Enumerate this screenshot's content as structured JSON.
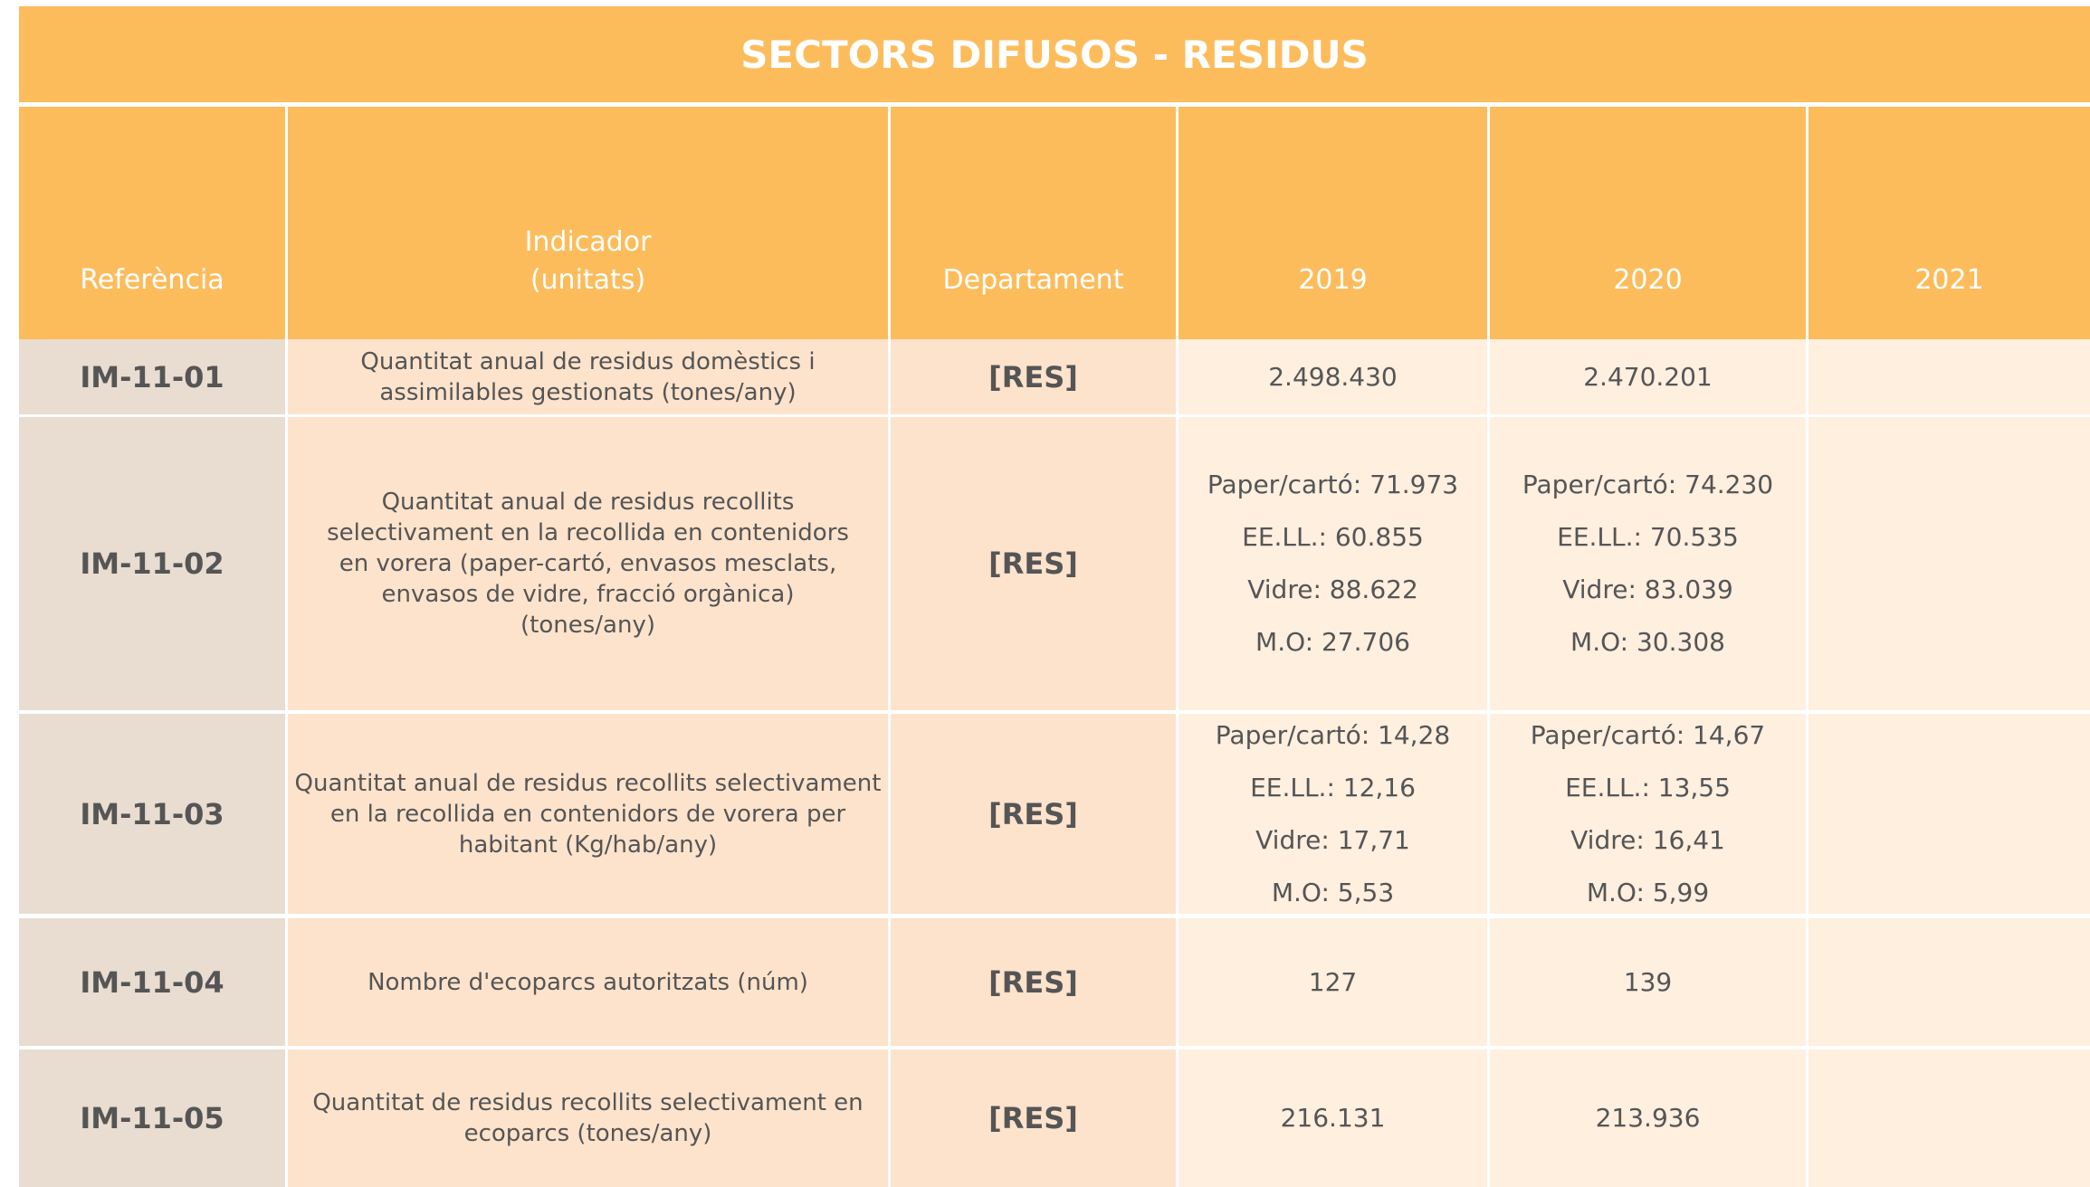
{
  "title": "SECTORS DIFUSOS - RESIDUS",
  "table": {
    "columns": [
      [
        "Referència"
      ],
      [
        "Indicador",
        "(unitats)"
      ],
      [
        "Departament"
      ],
      [
        "2019"
      ],
      [
        "2020"
      ],
      [
        "2021"
      ]
    ],
    "rows": [
      {
        "reference": "IM-11-01",
        "indicator": [
          "Quantitat anual de residus domèstics i",
          "assimilables gestionats (tones/any)"
        ],
        "department": "[RES]",
        "values_2019": [
          "2.498.430"
        ],
        "values_2020": [
          "2.470.201"
        ]
      },
      {
        "reference": "IM-11-02",
        "indicator": [
          "Quantitat anual de residus recollits",
          "selectivament en la recollida en contenidors",
          "en vorera (paper-cartó, envasos mesclats,",
          "envasos de vidre, fracció orgànica)",
          "(tones/any)"
        ],
        "department": "[RES]",
        "values_2019": [
          "Paper/cartó: 71.973",
          "EE.LL.: 60.855",
          "Vidre: 88.622",
          "M.O: 27.706"
        ],
        "values_2020": [
          "Paper/cartó: 74.230",
          "EE.LL.: 70.535",
          "Vidre: 83.039",
          "M.O: 30.308"
        ]
      },
      {
        "reference": "IM-11-03",
        "indicator": [
          "Quantitat anual de residus recollits selectivament",
          "en la recollida en contenidors de vorera per",
          "habitant (Kg/hab/any)"
        ],
        "department": "[RES]",
        "values_2019": [
          "Paper/cartó: 14,28",
          "EE.LL.: 12,16",
          "Vidre: 17,71",
          "M.O: 5,53"
        ],
        "values_2020": [
          "Paper/cartó: 14,67",
          "EE.LL.: 13,55",
          "Vidre: 16,41",
          "M.O: 5,99"
        ]
      },
      {
        "reference": "IM-11-04",
        "indicator": [
          "Nombre d'ecoparcs autoritzats (núm)"
        ],
        "department": "[RES]",
        "values_2019": [
          "127"
        ],
        "values_2020": [
          "139"
        ]
      },
      {
        "reference": "IM-11-05",
        "indicator": [
          "Quantitat de residus recollits selectivament en",
          "ecoparcs (tones/any)"
        ],
        "department": "[RES]",
        "values_2019": [
          "216.131"
        ],
        "values_2020": [
          "213.936"
        ]
      }
    ]
  }
}
